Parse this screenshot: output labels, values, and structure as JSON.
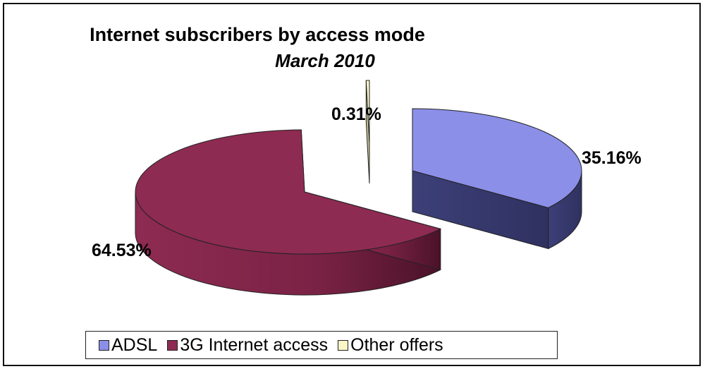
{
  "chart_data": {
    "type": "pie",
    "title": "Internet subscribers by access mode",
    "subtitle": "March 2010",
    "slices": [
      {
        "name": "ADSL",
        "value": 35.16,
        "label": "35.16%",
        "color": "#8b8fe8",
        "side_color": "#3f4278"
      },
      {
        "name": "3G Internet access",
        "value": 64.53,
        "label": "64.53%",
        "color": "#8e2b52",
        "side_color": "#6e1f3e"
      },
      {
        "name": "Other offers",
        "value": 0.31,
        "label": "0.31%",
        "color": "#fbf7c8",
        "side_color": "#c9c493"
      }
    ],
    "legend_position": "bottom",
    "style": "3d-exploded"
  }
}
